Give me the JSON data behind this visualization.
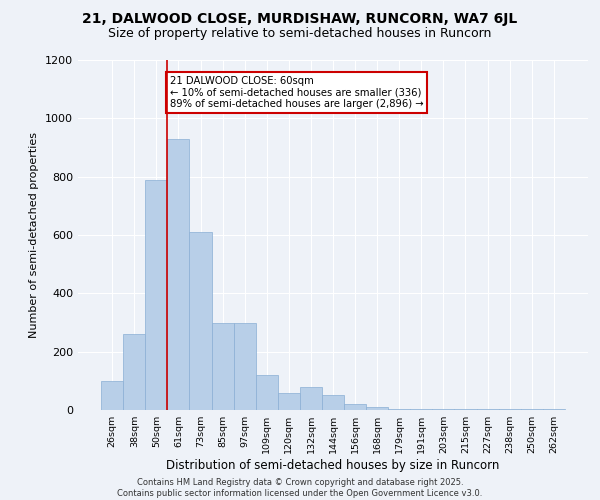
{
  "title": "21, DALWOOD CLOSE, MURDISHAW, RUNCORN, WA7 6JL",
  "subtitle": "Size of property relative to semi-detached houses in Runcorn",
  "xlabel": "Distribution of semi-detached houses by size in Runcorn",
  "ylabel": "Number of semi-detached properties",
  "categories": [
    "26sqm",
    "38sqm",
    "50sqm",
    "61sqm",
    "73sqm",
    "85sqm",
    "97sqm",
    "109sqm",
    "120sqm",
    "132sqm",
    "144sqm",
    "156sqm",
    "168sqm",
    "179sqm",
    "191sqm",
    "203sqm",
    "215sqm",
    "227sqm",
    "238sqm",
    "250sqm",
    "262sqm"
  ],
  "values": [
    100,
    260,
    790,
    930,
    610,
    300,
    300,
    120,
    60,
    80,
    50,
    20,
    10,
    5,
    5,
    5,
    5,
    5,
    5,
    5,
    5
  ],
  "bar_color": "#b8cfe8",
  "bar_edge_color": "#8aafd4",
  "annotation_title": "21 DALWOOD CLOSE: 60sqm",
  "annotation_line1": "← 10% of semi-detached houses are smaller (336)",
  "annotation_line2": "89% of semi-detached houses are larger (2,896) →",
  "annotation_color": "#cc0000",
  "ylim": [
    0,
    1200
  ],
  "yticks": [
    0,
    200,
    400,
    600,
    800,
    1000,
    1200
  ],
  "footer_line1": "Contains HM Land Registry data © Crown copyright and database right 2025.",
  "footer_line2": "Contains public sector information licensed under the Open Government Licence v3.0.",
  "bg_color": "#eef2f8",
  "grid_color": "#ffffff",
  "title_fontsize": 10,
  "subtitle_fontsize": 9
}
